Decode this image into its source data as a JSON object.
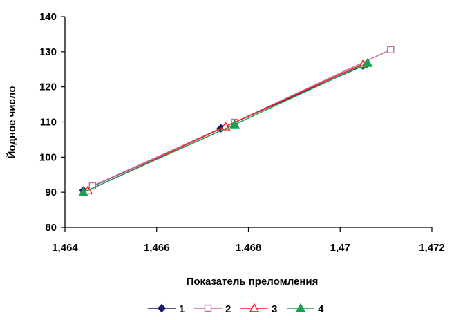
{
  "chart_data": {
    "type": "line",
    "title": "",
    "xlabel": "Показатель преломления",
    "ylabel": "Йодное число",
    "xlim": [
      1.464,
      1.472
    ],
    "ylim": [
      80,
      140
    ],
    "x_ticks": [
      1.464,
      1.466,
      1.468,
      1.47,
      1.472
    ],
    "x_tick_labels": [
      "1,464",
      "1,466",
      "1,468",
      "1,47",
      "1,472"
    ],
    "y_ticks": [
      80,
      90,
      100,
      110,
      120,
      130,
      140
    ],
    "y_tick_labels": [
      "80",
      "90",
      "100",
      "110",
      "120",
      "130",
      "140"
    ],
    "grid": false,
    "legend_position": "bottom",
    "series": [
      {
        "name": "1",
        "color": "#1a1a6e",
        "marker": "diamond-filled",
        "x": [
          1.4644,
          1.4674,
          1.4705
        ],
        "y": [
          90.5,
          108.2,
          126.0
        ]
      },
      {
        "name": "2",
        "color": "#cc66aa",
        "marker": "square-open",
        "x": [
          1.4646,
          1.4677,
          1.4711
        ],
        "y": [
          91.8,
          109.9,
          130.6
        ]
      },
      {
        "name": "3",
        "color": "#ff2020",
        "marker": "triangle-open",
        "x": [
          1.4645,
          1.4675,
          1.4705
        ],
        "y": [
          90.5,
          108.7,
          126.5
        ]
      },
      {
        "name": "4",
        "color": "#1aa055",
        "marker": "triangle-filled",
        "x": [
          1.4644,
          1.4677,
          1.4706
        ],
        "y": [
          90.0,
          109.3,
          126.8
        ]
      }
    ]
  }
}
